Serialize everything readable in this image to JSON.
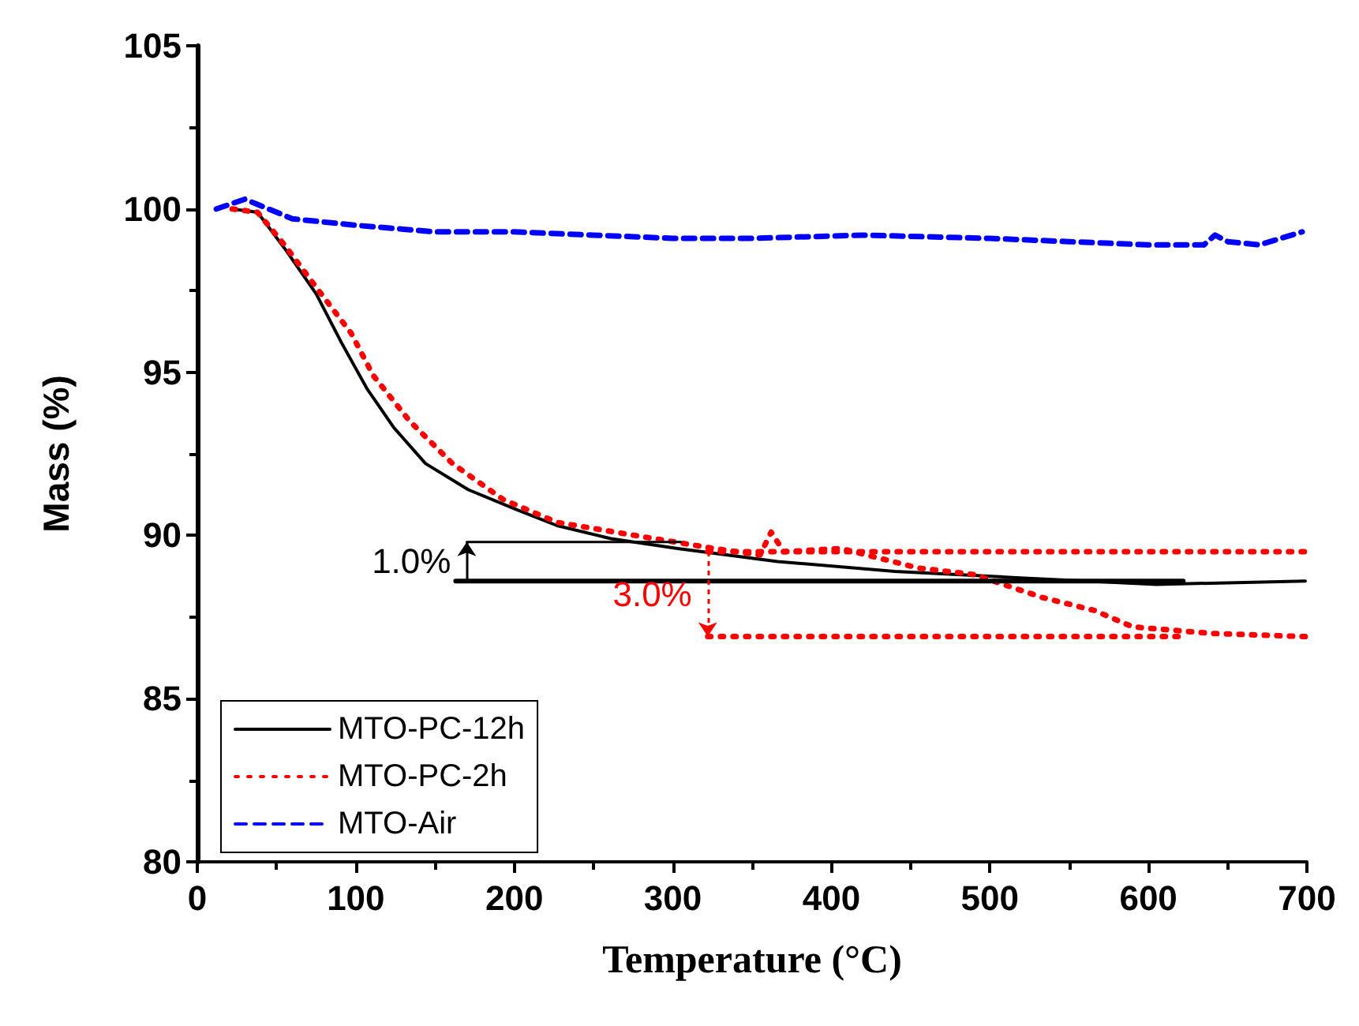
{
  "chart_data": {
    "type": "line",
    "xlabel": "Temperature (°C)",
    "ylabel": "Mass (%)",
    "xlim": [
      0,
      700
    ],
    "xticks": [
      0,
      100,
      200,
      300,
      400,
      500,
      600,
      700
    ],
    "ylim": [
      80,
      105
    ],
    "yticks": [
      80,
      85,
      90,
      95,
      100,
      105
    ],
    "grid": false,
    "legend": "bottom left",
    "marker": "none",
    "annotations": [
      "1.0%",
      "3.0%"
    ],
    "series": [
      {
        "name": "MTO-PC-12h",
        "color": "#000000",
        "line_style": "solid",
        "x": [
          22,
          38,
          55,
          75,
          91,
          107,
          124,
          144,
          171,
          201,
          227,
          261,
          303,
          366,
          440,
          519,
          605,
          699
        ],
        "values": [
          100.0,
          99.9,
          98.8,
          97.4,
          95.9,
          94.5,
          93.3,
          92.2,
          91.4,
          90.8,
          90.3,
          89.9,
          89.6,
          89.2,
          88.9,
          88.7,
          88.5,
          88.6
        ]
      },
      {
        "name": "MTO-PC-2h",
        "color": "#ff0000",
        "line_style": "dotted",
        "x": [
          22,
          38,
          55,
          75,
          97,
          111,
          134,
          161,
          193,
          227,
          276,
          326,
          355,
          362,
          370,
          406,
          455,
          490,
          533,
          566,
          590,
          639,
          699
        ],
        "values": [
          100.0,
          99.9,
          98.9,
          97.6,
          96.2,
          94.9,
          93.5,
          92.2,
          91.1,
          90.4,
          90.0,
          89.6,
          89.4,
          90.1,
          89.5,
          89.6,
          89.0,
          88.8,
          88.1,
          87.7,
          87.2,
          87.0,
          86.9
        ]
      },
      {
        "name": "MTO-Air",
        "color": "#0000ff",
        "line_style": "dashed",
        "x": [
          12,
          30,
          60,
          100,
          150,
          200,
          250,
          300,
          350,
          420,
          500,
          550,
          600,
          635,
          642,
          650,
          670,
          697
        ],
        "values": [
          100.0,
          100.3,
          99.7,
          99.5,
          99.3,
          99.3,
          99.2,
          99.1,
          99.1,
          99.2,
          99.1,
          99.0,
          98.9,
          98.9,
          99.2,
          99.0,
          98.9,
          99.3
        ]
      },
      {
        "color": "#000000",
        "line_style": "solid",
        "x": [
          170,
          305
        ],
        "values": [
          89.8,
          89.8
        ]
      },
      {
        "color": "#000000",
        "line_style": "solid",
        "x": [
          163,
          622
        ],
        "values": [
          88.6,
          88.6
        ]
      },
      {
        "color": "#ff0000",
        "line_style": "dotted",
        "x": [
          322,
          700
        ],
        "values": [
          89.5,
          89.5
        ]
      },
      {
        "color": "#ff0000",
        "line_style": "dotted",
        "x": [
          322,
          620
        ],
        "values": [
          86.9,
          86.9
        ]
      }
    ]
  }
}
